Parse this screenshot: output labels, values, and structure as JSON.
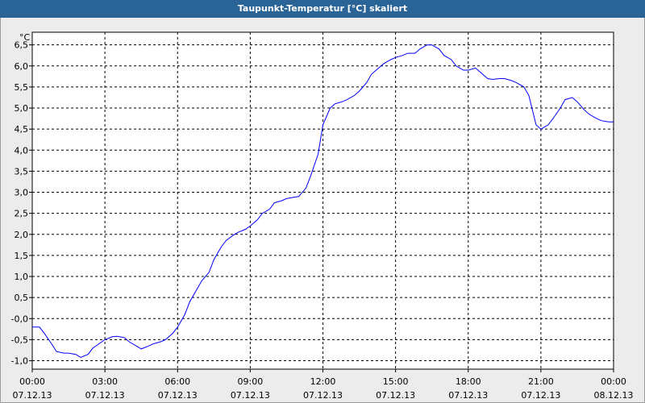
{
  "window": {
    "title": "Taupunkt-Temperatur [°C] skaliert"
  },
  "colors": {
    "titlebar": "#2a6496",
    "line": "#0000ff",
    "grid": "#000000",
    "plot_bg": "#ffffff",
    "window_bg": "#ececec"
  },
  "chart_data": {
    "type": "line",
    "title": "Taupunkt-Temperatur [°C] skaliert",
    "yunit": "°C",
    "ylim": [
      -1.2,
      6.8
    ],
    "xlim": [
      0,
      24
    ],
    "grid": true,
    "yticks": [
      {
        "v": 6.5,
        "l": "6,5"
      },
      {
        "v": 6.0,
        "l": "6,0"
      },
      {
        "v": 5.5,
        "l": "5,5"
      },
      {
        "v": 5.0,
        "l": "5,0"
      },
      {
        "v": 4.5,
        "l": "4,5"
      },
      {
        "v": 4.0,
        "l": "4,0"
      },
      {
        "v": 3.5,
        "l": "3,5"
      },
      {
        "v": 3.0,
        "l": "3,0"
      },
      {
        "v": 2.5,
        "l": "2,5"
      },
      {
        "v": 2.0,
        "l": "2,0"
      },
      {
        "v": 1.5,
        "l": "1,5"
      },
      {
        "v": 1.0,
        "l": "1,0"
      },
      {
        "v": 0.5,
        "l": "0,5"
      },
      {
        "v": 0.0,
        "l": "-0,0"
      },
      {
        "v": -0.5,
        "l": "-0,5"
      },
      {
        "v": -1.0,
        "l": "-1,0"
      }
    ],
    "xticks": [
      {
        "h": 0,
        "time": "00:00",
        "date": "07.12.13"
      },
      {
        "h": 3,
        "time": "03:00",
        "date": "07.12.13"
      },
      {
        "h": 6,
        "time": "06:00",
        "date": "07.12.13"
      },
      {
        "h": 9,
        "time": "09:00",
        "date": "07.12.13"
      },
      {
        "h": 12,
        "time": "12:00",
        "date": "07.12.13"
      },
      {
        "h": 15,
        "time": "15:00",
        "date": "07.12.13"
      },
      {
        "h": 18,
        "time": "18:00",
        "date": "07.12.13"
      },
      {
        "h": 21,
        "time": "21:00",
        "date": "07.12.13"
      },
      {
        "h": 24,
        "time": "00:00",
        "date": "08.12.13"
      }
    ],
    "series": [
      {
        "x": [
          0,
          0.3,
          0.5,
          0.8,
          1.0,
          1.3,
          1.5,
          1.8,
          2.0,
          2.3,
          2.5,
          2.8,
          3.0,
          3.3,
          3.5,
          3.8,
          4.0,
          4.3,
          4.5,
          4.8,
          5.0,
          5.3,
          5.5,
          5.8,
          6.0,
          6.3,
          6.5,
          6.8,
          7.0,
          7.3,
          7.5,
          7.8,
          8.0,
          8.3,
          8.5,
          8.8,
          9.0,
          9.3,
          9.5,
          9.8,
          10.0,
          10.3,
          10.5,
          10.8,
          11.0,
          11.3,
          11.5,
          11.8,
          12.0,
          12.3,
          12.5,
          12.8,
          13.0,
          13.3,
          13.5,
          13.8,
          14.0,
          14.3,
          14.5,
          14.8,
          15.0,
          15.3,
          15.5,
          15.8,
          16.0,
          16.3,
          16.5,
          16.8,
          17.0,
          17.3,
          17.5,
          17.8,
          18.0,
          18.3,
          18.5,
          18.8,
          19.0,
          19.3,
          19.5,
          19.8,
          20.0,
          20.3,
          20.5,
          20.8,
          21.0,
          21.3,
          21.5,
          21.8,
          22.0,
          22.3,
          22.5,
          22.8,
          23.0,
          23.3,
          23.5,
          23.8,
          24.0
        ],
        "y": [
          -0.2,
          -0.2,
          -0.35,
          -0.6,
          -0.78,
          -0.82,
          -0.82,
          -0.85,
          -0.92,
          -0.85,
          -0.7,
          -0.58,
          -0.5,
          -0.43,
          -0.42,
          -0.45,
          -0.55,
          -0.65,
          -0.72,
          -0.65,
          -0.6,
          -0.55,
          -0.5,
          -0.35,
          -0.2,
          0.1,
          0.4,
          0.7,
          0.9,
          1.1,
          1.4,
          1.7,
          1.85,
          1.98,
          2.05,
          2.12,
          2.2,
          2.35,
          2.5,
          2.6,
          2.75,
          2.8,
          2.85,
          2.88,
          2.9,
          3.1,
          3.4,
          3.9,
          4.6,
          5.0,
          5.1,
          5.15,
          5.2,
          5.3,
          5.4,
          5.6,
          5.8,
          5.95,
          6.05,
          6.15,
          6.2,
          6.25,
          6.3,
          6.3,
          6.4,
          6.5,
          6.5,
          6.4,
          6.25,
          6.15,
          6.0,
          5.9,
          5.9,
          5.95,
          5.85,
          5.7,
          5.68,
          5.7,
          5.7,
          5.65,
          5.6,
          5.5,
          5.3,
          4.6,
          4.5,
          4.6,
          4.75,
          5.0,
          5.2,
          5.25,
          5.15,
          4.95,
          4.85,
          4.75,
          4.7,
          4.67,
          4.67
        ]
      }
    ]
  }
}
